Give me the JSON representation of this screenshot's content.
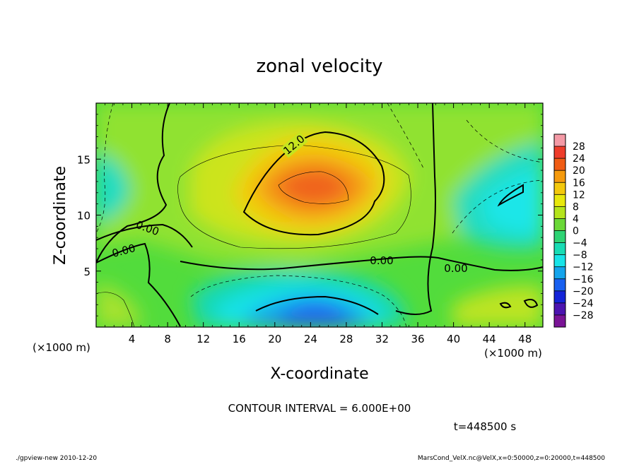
{
  "chart_data": {
    "type": "heatmap",
    "title": "zonal velocity",
    "xlabel": "X-coordinate",
    "ylabel": "Z-coordinate",
    "x_unit_label": "(×1000 m)",
    "xlim": [
      0,
      50
    ],
    "ylim": [
      0,
      20
    ],
    "x_ticks": [
      4,
      8,
      12,
      16,
      20,
      24,
      28,
      32,
      36,
      40,
      44,
      48
    ],
    "x_tick_labels": [
      "4",
      "8",
      "12",
      "16",
      "20",
      "24",
      "28",
      "32",
      "36",
      "40",
      "44",
      "48"
    ],
    "y_ticks": [
      5,
      10,
      15
    ],
    "y_tick_labels": [
      "5",
      "10",
      "15"
    ],
    "colorbar": {
      "levels": [
        28,
        24,
        20,
        16,
        12,
        8,
        4,
        0,
        -4,
        -8,
        -12,
        -16,
        -20,
        -24,
        -28
      ],
      "labels": [
        "28",
        "24",
        "20",
        "16",
        "12",
        "8",
        "4",
        "0",
        "−4",
        "−8",
        "−12",
        "−16",
        "−20",
        "−24",
        "−28"
      ],
      "colors": [
        "#f49aa6",
        "#ee3c2a",
        "#f05c14",
        "#f59a0c",
        "#f3c80c",
        "#e8e80c",
        "#b4e41c",
        "#6ad838",
        "#2ed474",
        "#18dcb4",
        "#18e4e8",
        "#14a4ec",
        "#1860f0",
        "#1424d8",
        "#4c14b0",
        "#7a1496"
      ]
    },
    "contour_labels": [
      "12.0",
      "0.00",
      "0.00",
      "0.00",
      "0.00"
    ],
    "annotations": {
      "contour_interval": "CONTOUR INTERVAL = 6.000E+00",
      "time": "t=448500 s",
      "footer_left": "./gpview-new   2010-12-20",
      "footer_right": "MarsCond_VelX.nc@VelX,x=0:50000,z=0:20000,t=448500"
    }
  }
}
